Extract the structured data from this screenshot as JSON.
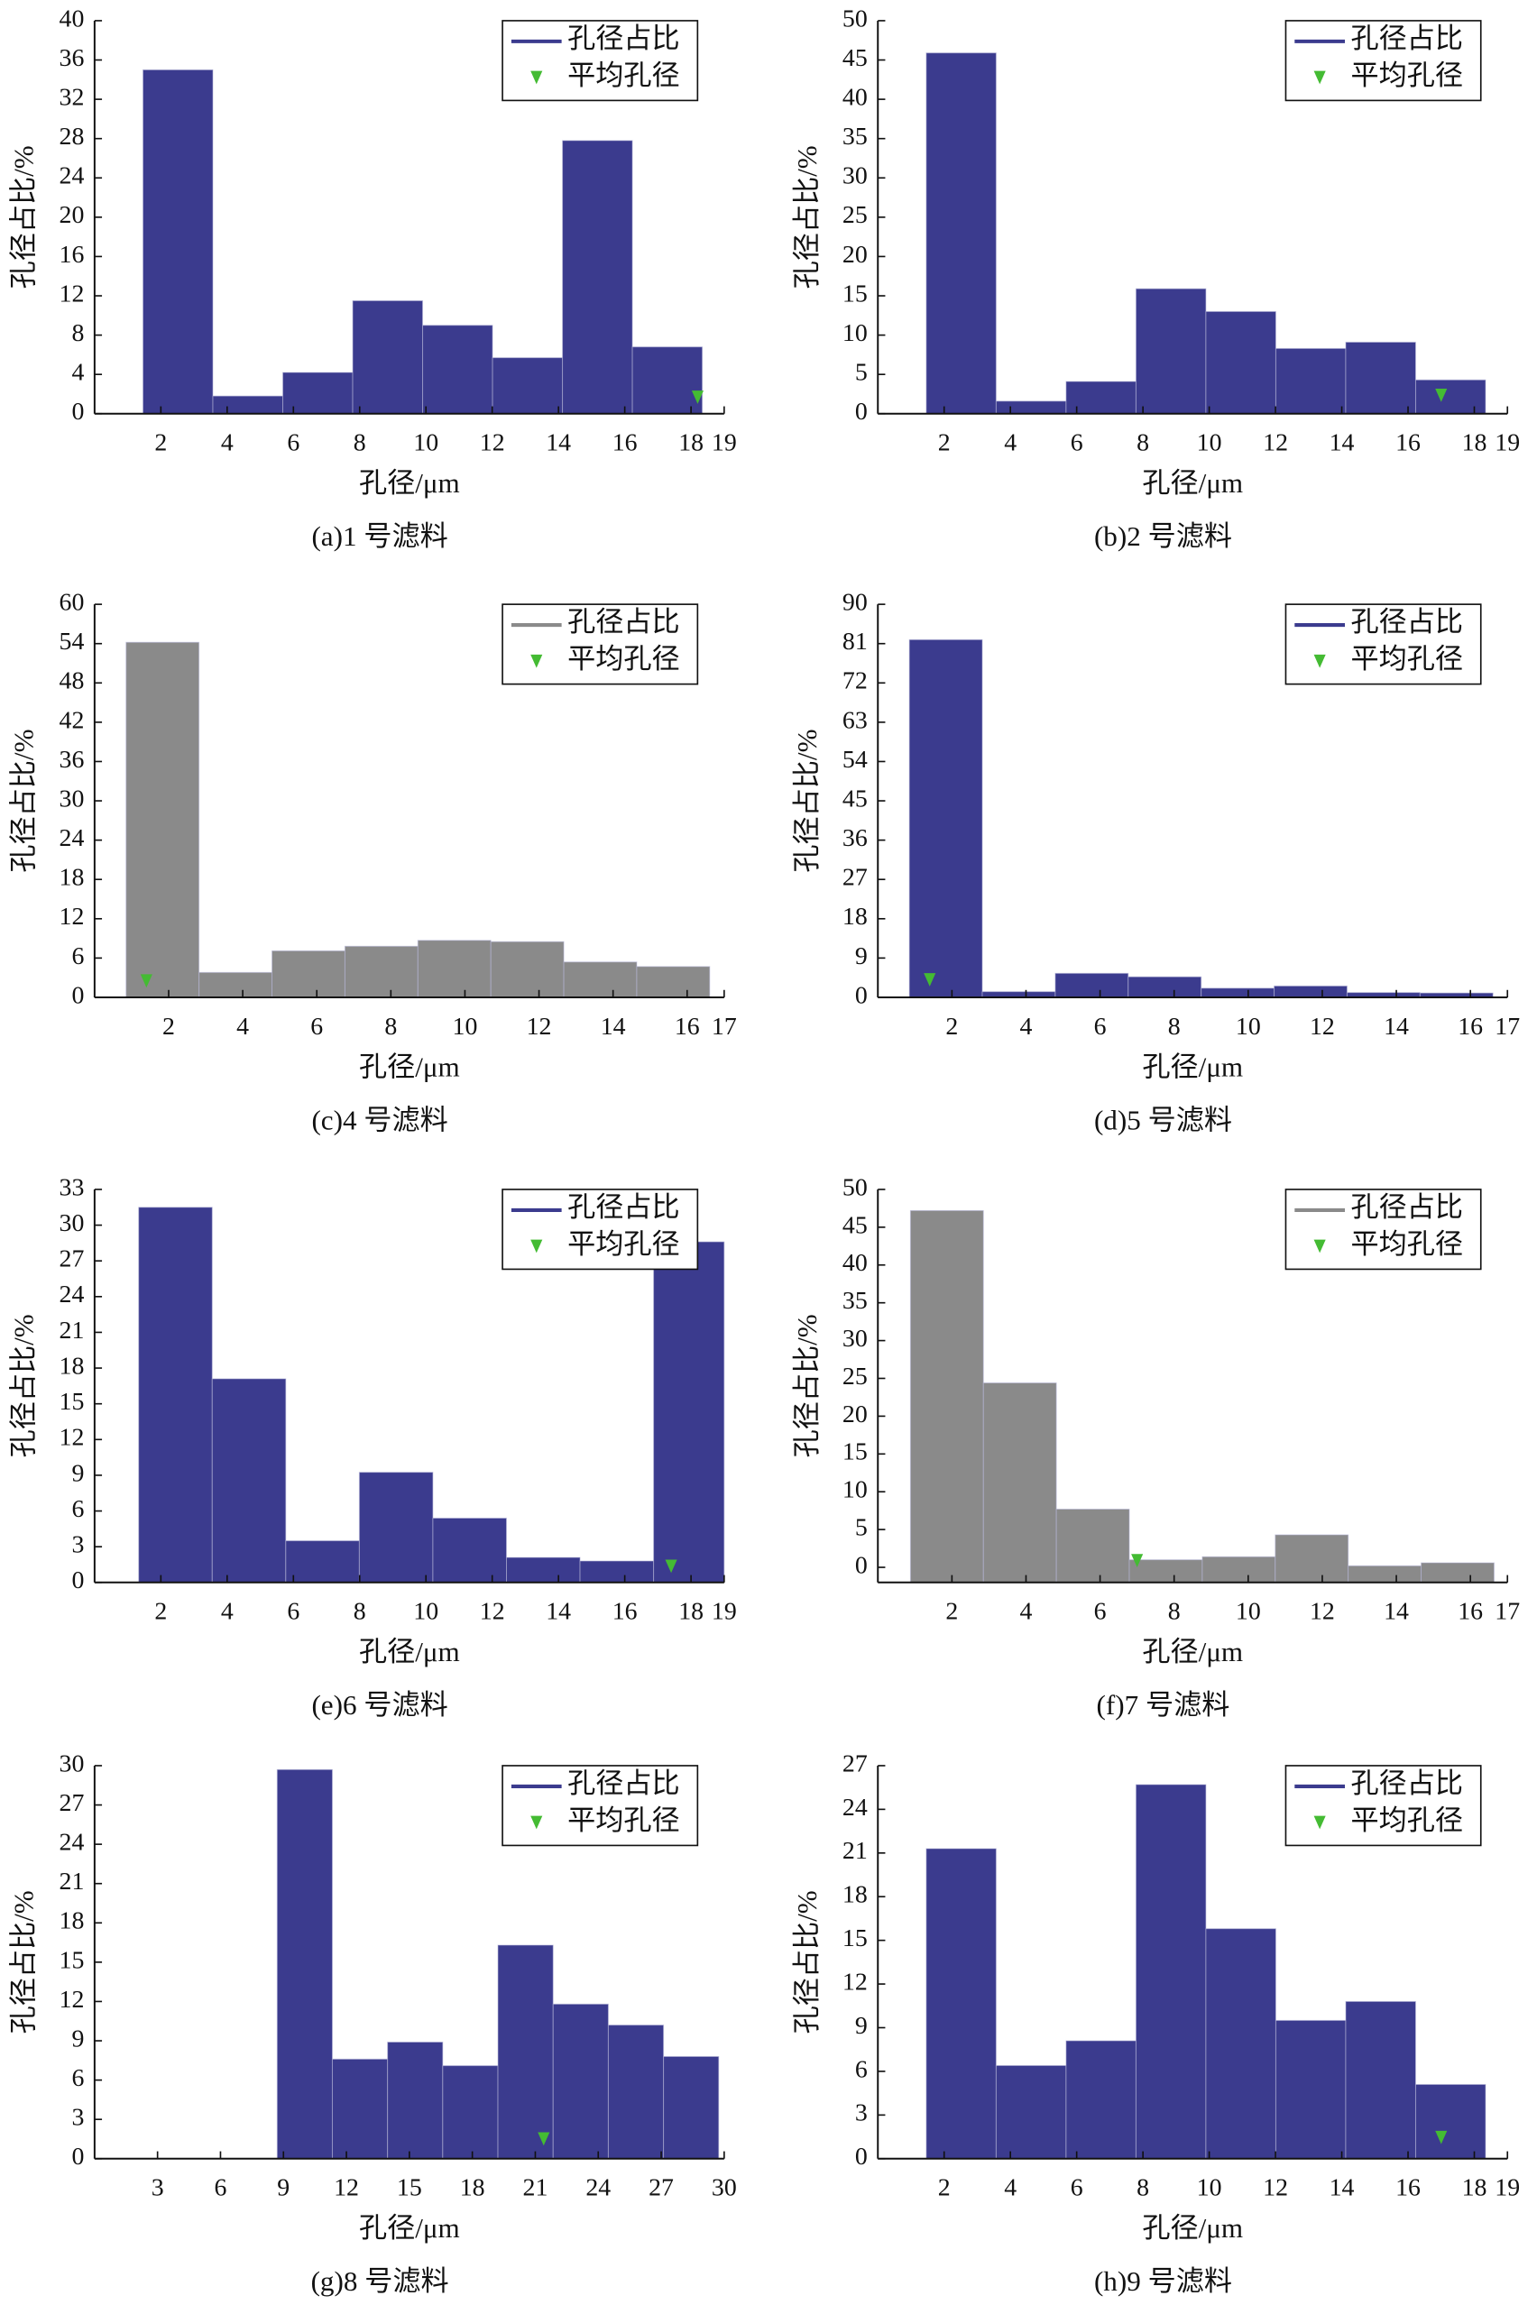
{
  "chart_data": [
    {
      "type": "histogram",
      "caption": "(a)1 号滤料",
      "xlabel": "孔径/μm",
      "ylabel": "孔径占比/%",
      "bins": [
        1.46,
        3.57,
        5.68,
        7.79,
        9.9,
        12.01,
        14.12,
        16.23,
        18.34
      ],
      "series": [
        {
          "name": "孔径占比",
          "color": "#3b3b8e",
          "values": [
            35,
            1.8,
            4.2,
            11.5,
            9,
            5.7,
            27.8,
            6.8
          ]
        },
        {
          "name": "平均孔径",
          "color": "#44bb33",
          "x": [
            18.2
          ],
          "values": [
            1
          ]
        }
      ],
      "xlim": [
        0,
        19
      ],
      "xticks": [
        2,
        4,
        6,
        8,
        10,
        12,
        14,
        16,
        18,
        19
      ],
      "ylim": [
        0,
        40
      ],
      "yticks": [
        0,
        4,
        8,
        12,
        16,
        20,
        24,
        28,
        32,
        36,
        40
      ]
    },
    {
      "type": "histogram",
      "caption": "(b)2 号滤料",
      "xlabel": "孔径/μm",
      "ylabel": "孔径占比/%",
      "bins": [
        1.46,
        3.57,
        5.68,
        7.79,
        9.9,
        12.01,
        14.12,
        16.23,
        18.34
      ],
      "series": [
        {
          "name": "孔径占比",
          "color": "#3b3b8e",
          "values": [
            45.9,
            1.6,
            4.1,
            15.9,
            13,
            8.3,
            9.1,
            4.3
          ]
        },
        {
          "name": "平均孔径",
          "color": "#44bb33",
          "x": [
            17
          ],
          "values": [
            1.5
          ]
        }
      ],
      "xlim": [
        0,
        19
      ],
      "xticks": [
        2,
        4,
        6,
        8,
        10,
        12,
        14,
        16,
        18,
        19
      ],
      "ylim": [
        0,
        50
      ],
      "yticks": [
        0,
        5,
        10,
        15,
        20,
        25,
        30,
        35,
        40,
        45,
        50
      ]
    },
    {
      "type": "histogram",
      "caption": "(c)4 号滤料",
      "xlabel": "孔径/μm",
      "ylabel": "孔径占比/%",
      "bins": [
        0.85,
        2.82,
        4.79,
        6.76,
        8.73,
        10.7,
        12.67,
        14.64,
        16.61
      ],
      "series": [
        {
          "name": "孔径占比",
          "color": "#8a8a8a",
          "values": [
            54.2,
            3.8,
            7.1,
            7.8,
            8.7,
            8.5,
            5.4,
            4.7
          ]
        },
        {
          "name": "平均孔径",
          "color": "#44bb33",
          "x": [
            1.4
          ],
          "values": [
            1.5
          ]
        }
      ],
      "xlim": [
        0,
        17
      ],
      "xticks": [
        2,
        4,
        6,
        8,
        10,
        12,
        14,
        16,
        17
      ],
      "ylim": [
        0,
        60
      ],
      "yticks": [
        0,
        6,
        12,
        18,
        24,
        30,
        36,
        42,
        48,
        54,
        60
      ]
    },
    {
      "type": "histogram",
      "caption": "(d)5 号滤料",
      "xlabel": "孔径/μm",
      "ylabel": "孔径占比/%",
      "bins": [
        0.85,
        2.82,
        4.79,
        6.76,
        8.73,
        10.7,
        12.67,
        14.64,
        16.61
      ],
      "series": [
        {
          "name": "孔径占比",
          "color": "#3b3b8e",
          "values": [
            81.9,
            1.3,
            5.5,
            4.7,
            2.1,
            2.6,
            1.1,
            1
          ]
        },
        {
          "name": "平均孔径",
          "color": "#44bb33",
          "x": [
            1.4
          ],
          "values": [
            2.5
          ]
        }
      ],
      "xlim": [
        0,
        17
      ],
      "xticks": [
        2,
        4,
        6,
        8,
        10,
        12,
        14,
        16,
        17
      ],
      "ylim": [
        0,
        90
      ],
      "yticks": [
        0,
        9,
        18,
        27,
        36,
        45,
        54,
        63,
        72,
        81,
        90
      ]
    },
    {
      "type": "histogram",
      "caption": "(e)6 号滤料",
      "xlabel": "孔径/μm",
      "ylabel": "孔径占比/%",
      "bins": [
        1.33,
        3.55,
        5.77,
        7.99,
        10.21,
        12.43,
        14.65,
        16.87,
        19
      ],
      "series": [
        {
          "name": "孔径占比",
          "color": "#3b3b8e",
          "values": [
            31.5,
            17.1,
            3.5,
            9.25,
            5.4,
            2.1,
            1.8,
            28.6
          ]
        },
        {
          "name": "平均孔径",
          "color": "#44bb33",
          "x": [
            17.4
          ],
          "values": [
            0.8
          ]
        }
      ],
      "xlim": [
        0,
        19
      ],
      "xticks": [
        2,
        4,
        6,
        8,
        10,
        12,
        14,
        16,
        18,
        19
      ],
      "ylim": [
        0,
        33
      ],
      "yticks": [
        0,
        3,
        6,
        9,
        12,
        15,
        18,
        21,
        24,
        27,
        30,
        33
      ]
    },
    {
      "type": "histogram",
      "caption": "(f)7 号滤料",
      "xlabel": "孔径/μm",
      "ylabel": "孔径占比/%",
      "bins": [
        0.88,
        2.85,
        4.82,
        6.79,
        8.76,
        10.73,
        12.7,
        14.67,
        16.64
      ],
      "series": [
        {
          "name": "孔径占比",
          "color": "#8a8a8a",
          "values": [
            47.2,
            24.4,
            7.7,
            1,
            1.4,
            4.3,
            0.2,
            0.6
          ]
        },
        {
          "name": "平均孔径",
          "color": "#44bb33",
          "x": [
            7
          ],
          "values": [
            0
          ]
        }
      ],
      "xlim": [
        0,
        17
      ],
      "xticks": [
        2,
        4,
        6,
        8,
        10,
        12,
        14,
        16,
        17
      ],
      "ylim": [
        -2,
        50
      ],
      "yticks": [
        0,
        5,
        10,
        15,
        20,
        25,
        30,
        35,
        40,
        45,
        50
      ]
    },
    {
      "type": "histogram",
      "caption": "(g)8 号滤料",
      "xlabel": "孔径/μm",
      "ylabel": "孔径占比/%",
      "bins": [
        8.7,
        11.33,
        13.96,
        16.59,
        19.22,
        21.85,
        24.48,
        27.11,
        29.74
      ],
      "series": [
        {
          "name": "孔径占比",
          "color": "#3b3b8e",
          "values": [
            29.7,
            7.6,
            8.9,
            7.1,
            16.3,
            11.8,
            10.2,
            7.8
          ]
        },
        {
          "name": "平均孔径",
          "color": "#44bb33",
          "x": [
            21.4
          ],
          "values": [
            1
          ]
        }
      ],
      "xlim": [
        0,
        30
      ],
      "xticks": [
        3,
        6,
        9,
        12,
        15,
        18,
        21,
        24,
        27,
        30
      ],
      "ylim": [
        0,
        30
      ],
      "yticks": [
        0,
        3,
        6,
        9,
        12,
        15,
        18,
        21,
        24,
        27,
        30
      ]
    },
    {
      "type": "histogram",
      "caption": "(h)9 号滤料",
      "xlabel": "孔径/μm",
      "ylabel": "孔径占比/%",
      "bins": [
        1.46,
        3.57,
        5.68,
        7.79,
        9.9,
        12.01,
        14.12,
        16.23,
        18.34
      ],
      "series": [
        {
          "name": "孔径占比",
          "color": "#3b3b8e",
          "values": [
            21.3,
            6.4,
            8.1,
            25.7,
            15.8,
            9.5,
            10.8,
            5.1
          ]
        },
        {
          "name": "平均孔径",
          "color": "#44bb33",
          "x": [
            17
          ],
          "values": [
            1
          ]
        }
      ],
      "xlim": [
        0,
        19
      ],
      "xticks": [
        2,
        4,
        6,
        8,
        10,
        12,
        14,
        16,
        18,
        19
      ],
      "ylim": [
        0,
        27
      ],
      "yticks": [
        0,
        3,
        6,
        9,
        12,
        15,
        18,
        21,
        24,
        27
      ]
    }
  ]
}
